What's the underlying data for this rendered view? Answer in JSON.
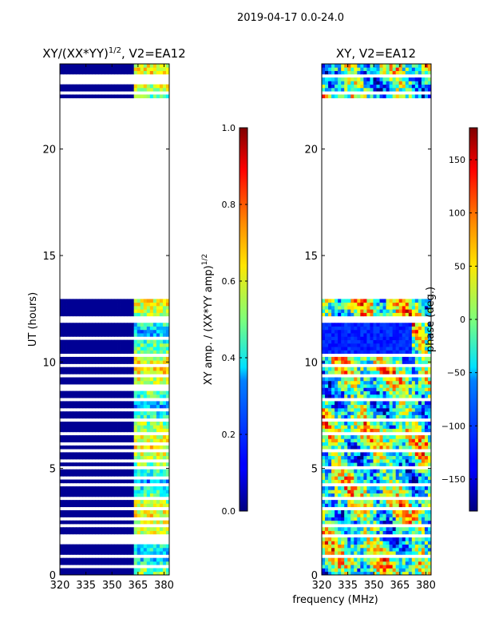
{
  "suptitle": "2019-04-17 0.0-24.0",
  "shared_xlabel": "frequency (MHz)",
  "chart_data": [
    {
      "type": "heatmap",
      "title_main": "XY/(XX*YY)",
      "title_sup": "1/2",
      "title_tail": ", V2=EA12",
      "ylabel": "UT (hours)",
      "xlim": [
        320,
        383
      ],
      "ylim": [
        0,
        24
      ],
      "xticks": [
        320,
        335,
        350,
        365,
        380
      ],
      "yticks": [
        0,
        5,
        10,
        15,
        20
      ],
      "data_bands": [
        [
          0,
          13.0
        ],
        [
          22.4,
          24.0
        ]
      ],
      "flagged_rows": [
        0.45,
        0.85,
        1.6,
        1.85,
        2.3,
        2.6,
        3.1,
        3.6,
        4.2,
        4.6,
        5.1,
        5.4,
        5.9,
        6.2,
        6.6,
        7.3,
        7.8,
        8.3,
        8.8,
        9.3,
        9.9,
        10.3,
        11.1,
        11.9,
        12.1,
        22.7,
        23.2,
        23.5
      ]
    },
    {
      "type": "heatmap",
      "title": "XY, V2=EA12",
      "xlim": [
        320,
        383
      ],
      "ylim": [
        0,
        24
      ],
      "xticks": [
        320,
        335,
        350,
        365,
        380
      ],
      "yticks": [
        0,
        5,
        10,
        15,
        20
      ],
      "data_bands": [
        [
          0,
          13.0
        ],
        [
          22.4,
          24.0
        ]
      ],
      "flagged_rows": [
        0.85,
        1.85,
        2.3,
        3.1,
        3.6,
        4.2,
        5.1,
        5.9,
        6.6,
        7.3,
        8.3,
        9.3,
        9.9,
        10.3,
        11.9,
        12.1,
        22.7,
        23.5
      ]
    }
  ],
  "colorbars": [
    {
      "label_main": "XY amp. / (XX*YY amp)",
      "label_sup": "1/2",
      "min": 0.0,
      "max": 1.0,
      "ticks": [
        "0.0",
        "0.2",
        "0.4",
        "0.6",
        "0.8",
        "1.0"
      ]
    },
    {
      "label": "phase (deg.)",
      "min": -180,
      "max": 180,
      "ticks": [
        "−150",
        "−100",
        "−50",
        "0",
        "50",
        "100",
        "150"
      ],
      "tick_values": [
        -150,
        -100,
        -50,
        0,
        50,
        100,
        150
      ]
    }
  ]
}
